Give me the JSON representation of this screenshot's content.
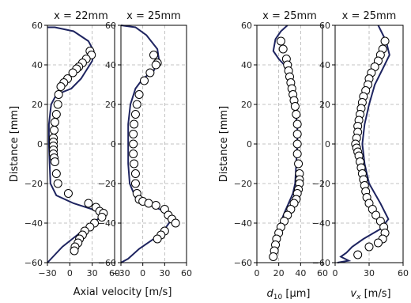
{
  "chart_data": [
    {
      "type": "scatter",
      "title": "x = 22mm",
      "xlim": [
        -30,
        60
      ],
      "ylim": [
        -60,
        60
      ],
      "xticks": [
        -30,
        0,
        30,
        60
      ],
      "yticks": [
        -60,
        -40,
        -20,
        0,
        20,
        40,
        60
      ],
      "xtick_labels": [
        "−30",
        "0",
        "30",
        "60"
      ],
      "ytick_labels": [
        "−60",
        "−40",
        "−20",
        "0",
        "20",
        "40",
        "60"
      ],
      "grid": true,
      "marker_points": [
        [
          27,
          47
        ],
        [
          29,
          45
        ],
        [
          22,
          43
        ],
        [
          17,
          41
        ],
        [
          12,
          39
        ],
        [
          9,
          38
        ],
        [
          4,
          36
        ],
        [
          -3,
          33
        ],
        [
          -8,
          31
        ],
        [
          -12,
          29
        ],
        [
          -15,
          25
        ],
        [
          -16,
          20
        ],
        [
          -18,
          15
        ],
        [
          -20,
          11
        ],
        [
          -21,
          7
        ],
        [
          -22,
          3
        ],
        [
          -22,
          1
        ],
        [
          -22,
          -1
        ],
        [
          -22,
          -3
        ],
        [
          -22,
          -5
        ],
        [
          -21,
          -7
        ],
        [
          -20,
          -9
        ],
        [
          -18,
          -15
        ],
        [
          -16,
          -20
        ],
        [
          -2,
          -25
        ],
        [
          25,
          -30
        ],
        [
          35,
          -32
        ],
        [
          40,
          -34
        ],
        [
          45,
          -35
        ],
        [
          43,
          -37
        ],
        [
          33,
          -40
        ],
        [
          27,
          -42
        ],
        [
          20,
          -44
        ],
        [
          17,
          -46
        ],
        [
          13,
          -48
        ],
        [
          11,
          -50
        ],
        [
          7,
          -52
        ],
        [
          6,
          -54
        ]
      ],
      "line_points": [
        [
          -30,
          59
        ],
        [
          -20,
          59
        ],
        [
          5,
          57
        ],
        [
          25,
          52
        ],
        [
          32,
          47
        ],
        [
          30,
          42
        ],
        [
          15,
          33
        ],
        [
          2,
          28
        ],
        [
          -18,
          25
        ],
        [
          -25,
          20
        ],
        [
          -28,
          10
        ],
        [
          -28,
          0
        ],
        [
          -27,
          -10
        ],
        [
          -26,
          -20
        ],
        [
          -18,
          -26
        ],
        [
          5,
          -30
        ],
        [
          30,
          -33
        ],
        [
          45,
          -36
        ],
        [
          30,
          -40
        ],
        [
          10,
          -46
        ],
        [
          -10,
          -52
        ],
        [
          -25,
          -58
        ],
        [
          -30,
          -60
        ]
      ]
    },
    {
      "type": "scatter",
      "title": "x = 25mm",
      "xlim": [
        -30,
        60
      ],
      "ylim": [
        -60,
        60
      ],
      "xticks": [
        -30,
        0,
        30,
        60
      ],
      "yticks": [
        -60,
        -40,
        -20,
        0,
        20,
        40,
        60
      ],
      "xtick_labels": [
        "−30",
        "0",
        "30",
        "60"
      ],
      "ytick_labels": [
        "−60",
        "−40",
        "−20",
        "0",
        "20",
        "40",
        "60"
      ],
      "grid": true,
      "marker_points": [
        [
          15,
          45
        ],
        [
          20,
          41
        ],
        [
          18,
          40
        ],
        [
          10,
          36
        ],
        [
          2,
          32
        ],
        [
          -5,
          25
        ],
        [
          -8,
          20
        ],
        [
          -10,
          15
        ],
        [
          -12,
          10
        ],
        [
          -13,
          5
        ],
        [
          -13,
          0
        ],
        [
          -13,
          -5
        ],
        [
          -12,
          -10
        ],
        [
          -10,
          -15
        ],
        [
          -10,
          -20
        ],
        [
          -8,
          -25
        ],
        [
          -5,
          -28
        ],
        [
          0,
          -29
        ],
        [
          8,
          -30
        ],
        [
          18,
          -31
        ],
        [
          30,
          -33
        ],
        [
          35,
          -36
        ],
        [
          40,
          -38
        ],
        [
          45,
          -40
        ],
        [
          30,
          -44
        ],
        [
          25,
          -46
        ],
        [
          20,
          -48
        ]
      ],
      "line_points": [
        [
          -30,
          60
        ],
        [
          -10,
          59
        ],
        [
          5,
          55
        ],
        [
          20,
          48
        ],
        [
          22,
          43
        ],
        [
          15,
          37
        ],
        [
          0,
          33
        ],
        [
          -10,
          28
        ],
        [
          -17,
          20
        ],
        [
          -20,
          10
        ],
        [
          -20,
          0
        ],
        [
          -20,
          -10
        ],
        [
          -18,
          -20
        ],
        [
          -10,
          -27
        ],
        [
          10,
          -31
        ],
        [
          30,
          -34
        ],
        [
          42,
          -37
        ],
        [
          32,
          -42
        ],
        [
          15,
          -48
        ],
        [
          -5,
          -53
        ],
        [
          -20,
          -58
        ],
        [
          -30,
          -60
        ]
      ]
    },
    {
      "type": "scatter",
      "title": "x = 25mm",
      "xlim": [
        0,
        60
      ],
      "ylim": [
        -60,
        60
      ],
      "xticks": [
        0,
        20,
        40,
        60
      ],
      "yticks": [
        -60,
        -40,
        -20,
        0,
        20,
        40,
        60
      ],
      "xtick_labels": [
        "0",
        "20",
        "40",
        "60"
      ],
      "ytick_labels": [
        "−60",
        "−40",
        "−20",
        "0",
        "20",
        "40",
        "60"
      ],
      "ylabel": "Distance [mm]",
      "grid": true,
      "marker_points": [
        [
          22,
          52
        ],
        [
          24,
          48
        ],
        [
          27,
          43
        ],
        [
          28,
          40
        ],
        [
          29,
          37
        ],
        [
          30,
          34
        ],
        [
          31,
          31
        ],
        [
          32,
          28
        ],
        [
          33,
          25
        ],
        [
          34,
          22
        ],
        [
          35,
          19
        ],
        [
          36,
          15
        ],
        [
          37,
          10
        ],
        [
          37,
          5
        ],
        [
          37,
          0
        ],
        [
          37,
          -5
        ],
        [
          38,
          -10
        ],
        [
          39,
          -15
        ],
        [
          39,
          -18
        ],
        [
          39,
          -20
        ],
        [
          38,
          -23
        ],
        [
          37,
          -25
        ],
        [
          36,
          -28
        ],
        [
          34,
          -30
        ],
        [
          31,
          -33
        ],
        [
          28,
          -36
        ],
        [
          25,
          -39
        ],
        [
          22,
          -42
        ],
        [
          20,
          -45
        ],
        [
          18,
          -48
        ],
        [
          17,
          -51
        ],
        [
          16,
          -54
        ],
        [
          15,
          -57
        ]
      ],
      "line_points": [
        [
          28,
          60
        ],
        [
          22,
          57
        ],
        [
          17,
          53
        ],
        [
          15,
          47
        ],
        [
          20,
          43
        ],
        [
          25,
          40
        ],
        [
          30,
          30
        ],
        [
          34,
          20
        ],
        [
          37,
          10
        ],
        [
          37,
          0
        ],
        [
          36,
          -10
        ],
        [
          35,
          -20
        ],
        [
          33,
          -25
        ],
        [
          25,
          -35
        ],
        [
          18,
          -45
        ],
        [
          15,
          -52
        ],
        [
          13,
          -58
        ]
      ]
    },
    {
      "type": "scatter",
      "title": "x = 25mm",
      "xlim": [
        0,
        60
      ],
      "ylim": [
        -60,
        60
      ],
      "xticks": [
        0,
        30,
        60
      ],
      "yticks": [
        -60,
        -40,
        -20,
        0,
        20,
        40,
        60
      ],
      "xtick_labels": [
        "0",
        "30",
        "60"
      ],
      "ytick_labels": [
        "−60",
        "−40",
        "−20",
        "0",
        "20",
        "40",
        "60"
      ],
      "grid": true,
      "marker_points": [
        [
          44,
          52
        ],
        [
          42,
          48
        ],
        [
          40,
          45
        ],
        [
          38,
          42
        ],
        [
          35,
          39
        ],
        [
          32,
          36
        ],
        [
          30,
          33
        ],
        [
          29,
          30
        ],
        [
          27,
          27
        ],
        [
          25,
          24
        ],
        [
          24,
          21
        ],
        [
          23,
          18
        ],
        [
          22,
          15
        ],
        [
          21,
          12
        ],
        [
          20,
          9
        ],
        [
          20,
          6
        ],
        [
          19,
          3
        ],
        [
          18,
          0
        ],
        [
          19,
          -2
        ],
        [
          20,
          -4
        ],
        [
          21,
          -6
        ],
        [
          22,
          -9
        ],
        [
          23,
          -12
        ],
        [
          24,
          -15
        ],
        [
          25,
          -18
        ],
        [
          26,
          -21
        ],
        [
          27,
          -24
        ],
        [
          28,
          -27
        ],
        [
          30,
          -30
        ],
        [
          33,
          -33
        ],
        [
          36,
          -36
        ],
        [
          40,
          -39
        ],
        [
          43,
          -42
        ],
        [
          44,
          -45
        ],
        [
          42,
          -48
        ],
        [
          38,
          -50
        ],
        [
          30,
          -52
        ],
        [
          20,
          -56
        ]
      ],
      "line_points": [
        [
          38,
          60
        ],
        [
          45,
          52
        ],
        [
          48,
          45
        ],
        [
          42,
          38
        ],
        [
          35,
          30
        ],
        [
          30,
          20
        ],
        [
          26,
          10
        ],
        [
          24,
          0
        ],
        [
          26,
          -10
        ],
        [
          30,
          -20
        ],
        [
          40,
          -30
        ],
        [
          47,
          -38
        ],
        [
          40,
          -43
        ],
        [
          25,
          -48
        ],
        [
          15,
          -52
        ],
        [
          10,
          -55
        ],
        [
          5,
          -57
        ],
        [
          12,
          -59
        ],
        [
          2,
          -60
        ]
      ]
    }
  ],
  "shared_labels": {
    "distance_ylabel": "Distance [mm]",
    "axial_xlabel": "Axial velocity [m/s]",
    "d10_var": "d",
    "d10_sub": "10",
    "d10_unit": "[μm]",
    "vx_var": "v",
    "vx_sub": "x",
    "vx_unit": "[m/s]"
  }
}
